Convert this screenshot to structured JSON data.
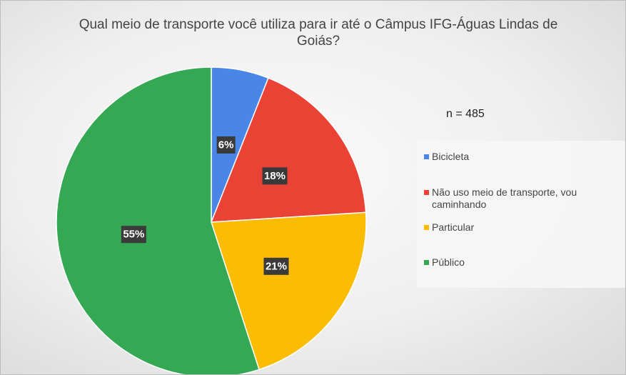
{
  "chart_data": {
    "type": "pie",
    "title": "Qual meio de transporte você utiliza para ir até o Câmpus IFG-Águas Lindas de Goiás?",
    "annotation": "n = 485",
    "categories": [
      "Bicicleta",
      "Não uso meio de transporte, vou caminhando",
      "Particular",
      "Público"
    ],
    "values": [
      6,
      18,
      21,
      55
    ],
    "value_labels": [
      "6%",
      "18%",
      "21%",
      "55%"
    ],
    "colors": [
      "#4a86e8",
      "#ea4335",
      "#fbbc04",
      "#34a853"
    ],
    "legend": "right"
  }
}
